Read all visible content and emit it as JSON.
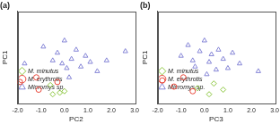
{
  "chart_data": [
    {
      "type": "scatter",
      "title": "(a)",
      "x_label": "PC2",
      "y_label": "PC1",
      "xlim": [
        -2.0,
        3.0
      ],
      "xticks": [
        {
          "value": -2,
          "label": "-2.0"
        },
        {
          "value": -1,
          "label": "-1.0"
        },
        {
          "value": 0,
          "label": "0.0"
        },
        {
          "value": 1,
          "label": "1.0"
        },
        {
          "value": 2,
          "label": "2.0"
        },
        {
          "value": 3,
          "label": "3.0"
        }
      ],
      "ylim": [
        -2.5,
        3.5
      ],
      "tick_labels": "x",
      "legend": "upper right",
      "grid": false,
      "series": [
        {
          "name": "M. minutus",
          "color": "#8cc63f",
          "marker": "diamond",
          "x": [
            -0.6,
            -0.2,
            -0.5,
            0.0
          ],
          "y": [
            -1.3,
            -1.8,
            -1.9,
            -1.7
          ]
        },
        {
          "name": "M. erythrotis",
          "color": "#e8473a",
          "marker": "circle",
          "x": [
            -1.9,
            -1.2,
            -1.1,
            -0.3
          ],
          "y": [
            -1.1,
            -0.8,
            -1.6,
            -1.1
          ]
        },
        {
          "name": "Micromys sp.",
          "color": "#8585d6",
          "marker": "triangle",
          "x": [
            -1.7,
            -0.9,
            -0.5,
            -0.3,
            0.0,
            0.1,
            0.3,
            0.5,
            0.7,
            0.9,
            1.1,
            1.4,
            1.8,
            2.6,
            0.2,
            -0.1
          ],
          "y": [
            0.1,
            1.2,
            0.3,
            0.8,
            1.6,
            -0.2,
            0.4,
            1.0,
            -0.1,
            0.6,
            0.2,
            -0.4,
            0.3,
            0.9,
            -0.8,
            0.1
          ]
        }
      ]
    },
    {
      "type": "scatter",
      "title": "(b)",
      "x_label": "PC3",
      "y_label": "PC1",
      "xlim": [
        -2.0,
        3.0
      ],
      "xticks": [
        {
          "value": -2,
          "label": "-2.0"
        },
        {
          "value": -1,
          "label": "-1.0"
        },
        {
          "value": 0,
          "label": "0.0"
        },
        {
          "value": 1,
          "label": "1.0"
        },
        {
          "value": 2,
          "label": "2.0"
        },
        {
          "value": 3,
          "label": "3.0"
        }
      ],
      "ylim": [
        -2.5,
        3.5
      ],
      "tick_labels": "x",
      "legend": "upper right",
      "grid": false,
      "series": [
        {
          "name": "M. minutus",
          "color": "#8cc63f",
          "marker": "diamond",
          "x": [
            -0.3,
            0.2,
            0.8,
            0.4
          ],
          "y": [
            -1.5,
            -1.9,
            -1.6,
            -1.2
          ]
        },
        {
          "name": "M. erythrotis",
          "color": "#e8473a",
          "marker": "circle",
          "x": [
            -1.8,
            -1.3,
            -0.9,
            -0.5
          ],
          "y": [
            -1.0,
            -1.4,
            -0.8,
            -1.7
          ]
        },
        {
          "name": "Micromys sp.",
          "color": "#8585d6",
          "marker": "triangle",
          "x": [
            -1.0,
            -0.7,
            -0.4,
            -0.2,
            0.0,
            0.2,
            0.3,
            0.5,
            0.6,
            0.8,
            1.0,
            1.2,
            1.5,
            2.3,
            -0.5,
            0.1
          ],
          "y": [
            0.6,
            1.3,
            -0.1,
            0.9,
            1.6,
            0.2,
            0.7,
            -0.3,
            1.0,
            0.4,
            -0.2,
            0.8,
            0.1,
            -0.4,
            0.3,
            -0.6
          ]
        }
      ]
    }
  ]
}
